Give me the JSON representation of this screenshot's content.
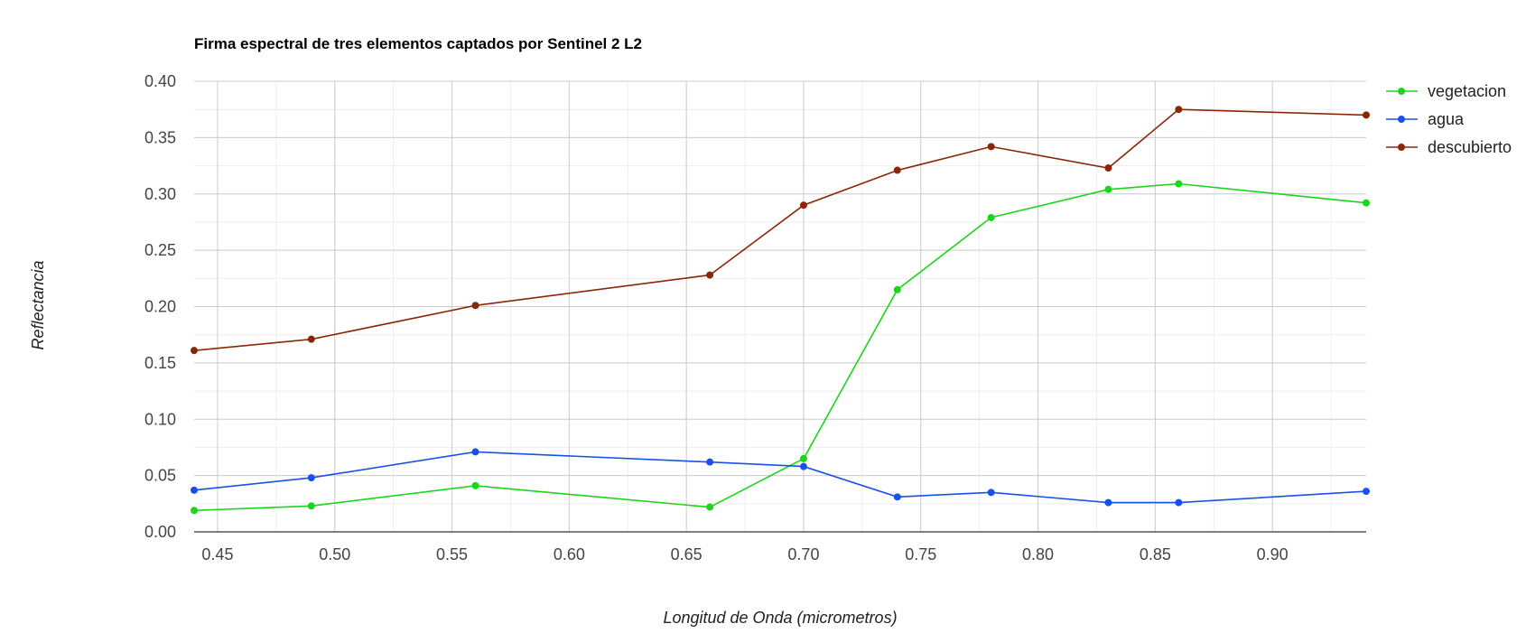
{
  "chart_data": {
    "type": "line",
    "title": "Firma espectral de tres elementos captados por Sentinel 2 L2",
    "xlabel": "Longitud de Onda (micrometros)",
    "ylabel": "Reflectancia",
    "xlim": [
      0.44,
      0.94
    ],
    "ylim": [
      0.0,
      0.4
    ],
    "x_ticks": [
      "0.45",
      "0.50",
      "0.55",
      "0.60",
      "0.65",
      "0.70",
      "0.75",
      "0.80",
      "0.85",
      "0.90"
    ],
    "y_ticks": [
      "0.00",
      "0.05",
      "0.10",
      "0.15",
      "0.20",
      "0.25",
      "0.30",
      "0.35",
      "0.40"
    ],
    "grid": true,
    "legend_position": "right",
    "x": [
      0.44,
      0.49,
      0.56,
      0.66,
      0.7,
      0.74,
      0.78,
      0.83,
      0.86,
      0.94
    ],
    "series": [
      {
        "name": "vegetacion",
        "color": "#1ad61a",
        "values": [
          0.019,
          0.023,
          0.041,
          0.022,
          0.065,
          0.215,
          0.279,
          0.304,
          0.309,
          0.292
        ]
      },
      {
        "name": "agua",
        "color": "#1750ec",
        "values": [
          0.037,
          0.048,
          0.071,
          0.062,
          0.058,
          0.031,
          0.035,
          0.026,
          0.026,
          0.036
        ]
      },
      {
        "name": "descubierto",
        "color": "#8a2608",
        "values": [
          0.161,
          0.171,
          0.201,
          0.228,
          0.29,
          0.321,
          0.342,
          0.323,
          0.375,
          0.37
        ]
      }
    ]
  }
}
